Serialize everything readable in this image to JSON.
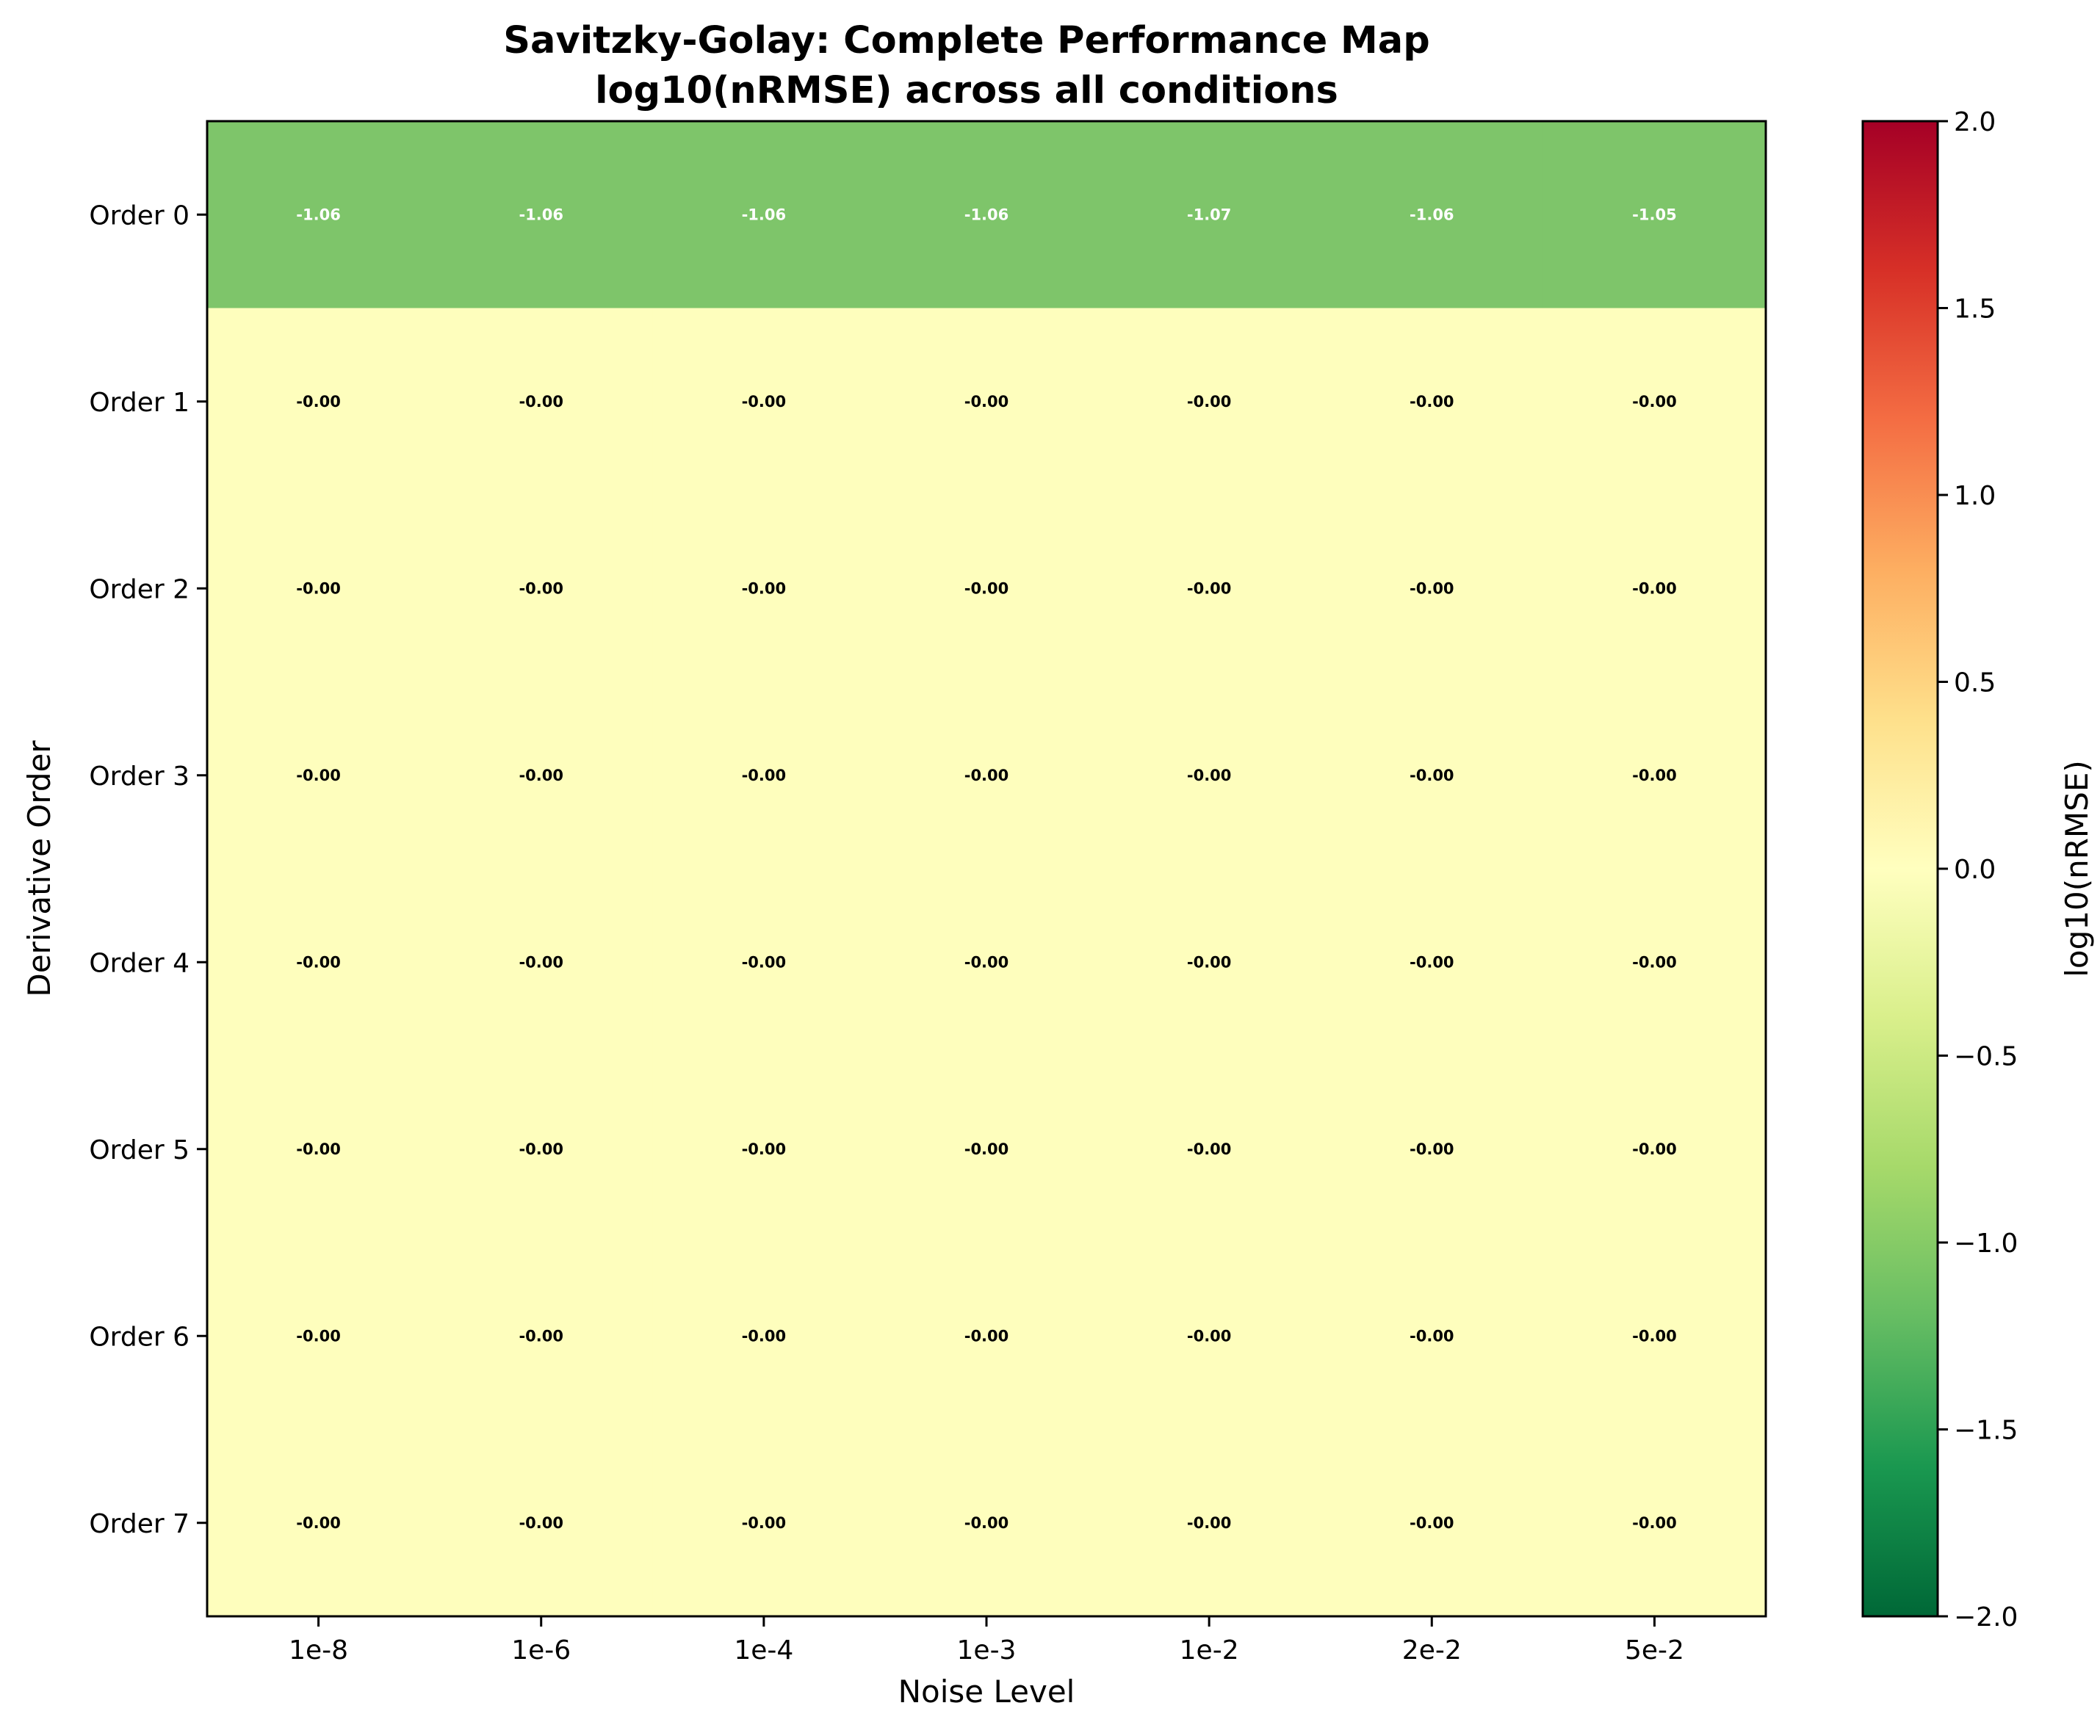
{
  "chart_data": {
    "type": "heatmap",
    "title": "Savitzky-Golay: Complete Performance Map",
    "subtitle": "log10(nRMSE) across all conditions",
    "xlabel": "Noise Level",
    "ylabel": "Derivative Order",
    "x_categories": [
      "1e-8",
      "1e-6",
      "1e-4",
      "1e-3",
      "1e-2",
      "2e-2",
      "5e-2"
    ],
    "y_categories": [
      "Order 0",
      "Order 1",
      "Order 2",
      "Order 3",
      "Order 4",
      "Order 5",
      "Order 6",
      "Order 7"
    ],
    "values": [
      [
        -1.06,
        -1.06,
        -1.06,
        -1.06,
        -1.07,
        -1.06,
        -1.05
      ],
      [
        -0.0,
        -0.0,
        -0.0,
        -0.0,
        -0.0,
        -0.0,
        -0.0
      ],
      [
        -0.0,
        -0.0,
        -0.0,
        -0.0,
        -0.0,
        -0.0,
        -0.0
      ],
      [
        -0.0,
        -0.0,
        -0.0,
        -0.0,
        -0.0,
        -0.0,
        -0.0
      ],
      [
        -0.0,
        -0.0,
        -0.0,
        -0.0,
        -0.0,
        -0.0,
        -0.0
      ],
      [
        -0.0,
        -0.0,
        -0.0,
        -0.0,
        -0.0,
        -0.0,
        -0.0
      ],
      [
        -0.0,
        -0.0,
        -0.0,
        -0.0,
        -0.0,
        -0.0,
        -0.0
      ],
      [
        -0.0,
        -0.0,
        -0.0,
        -0.0,
        -0.0,
        -0.0,
        -0.0
      ]
    ],
    "cell_labels": [
      [
        "-1.06",
        "-1.06",
        "-1.06",
        "-1.06",
        "-1.07",
        "-1.06",
        "-1.05"
      ],
      [
        "-0.00",
        "-0.00",
        "-0.00",
        "-0.00",
        "-0.00",
        "-0.00",
        "-0.00"
      ],
      [
        "-0.00",
        "-0.00",
        "-0.00",
        "-0.00",
        "-0.00",
        "-0.00",
        "-0.00"
      ],
      [
        "-0.00",
        "-0.00",
        "-0.00",
        "-0.00",
        "-0.00",
        "-0.00",
        "-0.00"
      ],
      [
        "-0.00",
        "-0.00",
        "-0.00",
        "-0.00",
        "-0.00",
        "-0.00",
        "-0.00"
      ],
      [
        "-0.00",
        "-0.00",
        "-0.00",
        "-0.00",
        "-0.00",
        "-0.00",
        "-0.00"
      ],
      [
        "-0.00",
        "-0.00",
        "-0.00",
        "-0.00",
        "-0.00",
        "-0.00",
        "-0.00"
      ],
      [
        "-0.00",
        "-0.00",
        "-0.00",
        "-0.00",
        "-0.00",
        "-0.00",
        "-0.00"
      ]
    ],
    "colormap": "RdYlGn_r",
    "colorbar": {
      "label": "log10(nRMSE)",
      "vmin": -2.0,
      "vmax": 2.0,
      "ticks": [
        -2.0,
        -1.5,
        -1.0,
        -0.5,
        0.0,
        0.5,
        1.0,
        1.5,
        2.0
      ],
      "tick_labels": [
        "−2.0",
        "−1.5",
        "−1.0",
        "−0.5",
        "0.0",
        "0.5",
        "1.0",
        "1.5",
        "2.0"
      ],
      "colors": [
        "#006837",
        "#1a9850",
        "#66bd63",
        "#a6d96a",
        "#d9ef8b",
        "#ffffbf",
        "#fee08b",
        "#fdae61",
        "#f46d43",
        "#d73027",
        "#a50026"
      ]
    },
    "cell_colors": {
      "order0": "#7ec56a",
      "other": "#fefebd"
    },
    "label_colors": {
      "on_dark": "#ffffff",
      "on_light": "#000000"
    },
    "grid": false
  }
}
